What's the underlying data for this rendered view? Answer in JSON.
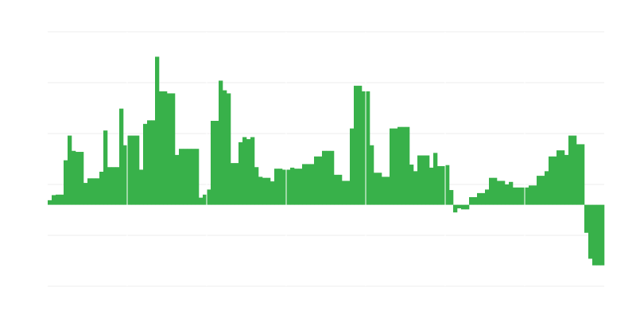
{
  "chart_data": {
    "type": "bar",
    "title": "",
    "xlabel": "",
    "ylabel": "",
    "ylim": [
      -1.6,
      3.4
    ],
    "gridlines": [
      3.4,
      2.4,
      1.4,
      0.4,
      -0.6,
      -1.6
    ],
    "grid": true,
    "bar_color": "#38b14a",
    "grid_color": "#eeeeee",
    "values": [
      0.09,
      0.19,
      0.2,
      0.2,
      0.875,
      1.36,
      1.06,
      1.04,
      1.04,
      0.43,
      0.52,
      0.52,
      0.52,
      0.65,
      1.46,
      0.74,
      0.74,
      0.74,
      1.89,
      1.17,
      1.36,
      1.36,
      1.36,
      0.69,
      1.59,
      1.66,
      1.66,
      2.91,
      2.23,
      2.23,
      2.19,
      2.19,
      0.98,
      1.1,
      1.1,
      1.1,
      1.1,
      1.1,
      0.14,
      0.2,
      0.3,
      1.65,
      1.65,
      2.44,
      2.25,
      2.19,
      0.82,
      0.82,
      1.23,
      1.33,
      1.29,
      1.33,
      0.74,
      0.55,
      0.53,
      0.53,
      0.46,
      0.71,
      0.71,
      0.69,
      0.69,
      0.73,
      0.71,
      0.71,
      0.8,
      0.8,
      0.8,
      0.95,
      0.95,
      1.06,
      1.06,
      1.06,
      0.59,
      0.59,
      0.47,
      0.47,
      1.5,
      2.34,
      2.34,
      2.23,
      2.23,
      1.17,
      0.63,
      0.63,
      0.55,
      0.55,
      1.5,
      1.5,
      1.53,
      1.53,
      1.53,
      0.79,
      0.66,
      0.97,
      0.97,
      0.97,
      0.73,
      1.02,
      0.76,
      0.76,
      0.78,
      0.29,
      -0.15,
      -0.07,
      -0.09,
      -0.09,
      0.15,
      0.15,
      0.23,
      0.23,
      0.3,
      0.53,
      0.53,
      0.47,
      0.47,
      0.4,
      0.45,
      0.34,
      0.34,
      0.34,
      0.34,
      0.38,
      0.38,
      0.57,
      0.57,
      0.66,
      0.95,
      0.95,
      1.07,
      1.07,
      0.98,
      1.36,
      1.36,
      1.19,
      1.19,
      -0.55,
      -1.06,
      -1.19,
      -1.19,
      -1.19
    ]
  }
}
